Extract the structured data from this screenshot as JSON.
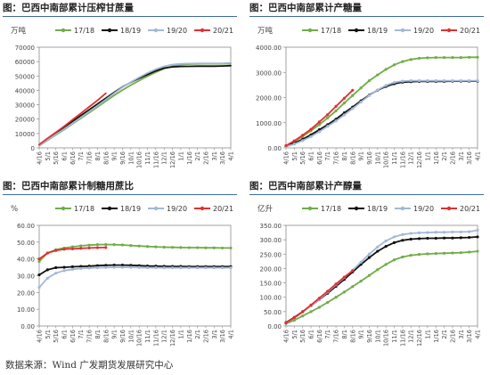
{
  "source": "数据来源：Wind  广发期货发展研究中心",
  "chart_data": [
    {
      "type": "line",
      "title": "图：巴西中南部累计压榨甘蔗量",
      "unit": "万吨",
      "ylim": [
        0,
        70000
      ],
      "yticks": [
        0,
        10000,
        20000,
        30000,
        40000,
        50000,
        60000,
        70000
      ],
      "ytick_labels": [
        "0",
        "10000",
        "20000",
        "30000",
        "40000",
        "50000",
        "60000",
        "70000"
      ],
      "x_labels": [
        "4/16",
        "5/1",
        "5/16",
        "6/1",
        "6/16",
        "7/1",
        "7/16",
        "8/1",
        "8/16",
        "9/1",
        "9/16",
        "10/1",
        "10/16",
        "11/1",
        "11/16",
        "12/1",
        "12/16",
        "1/1",
        "1/16",
        "2/1",
        "2/16",
        "3/1",
        "3/16",
        "4/1"
      ],
      "legend_placement": "top",
      "series": [
        {
          "name": "17/18",
          "color": "#70ad47",
          "values": [
            1500,
            5200,
            9000,
            12700,
            16700,
            20500,
            24500,
            28500,
            32500,
            36500,
            40200,
            43600,
            46800,
            49800,
            52600,
            55000,
            56800,
            57800,
            58200,
            58400,
            58500,
            58500,
            58500,
            58600
          ]
        },
        {
          "name": "18/19",
          "color": "#111111",
          "values": [
            2000,
            6200,
            10300,
            14300,
            18400,
            22400,
            26500,
            30500,
            34500,
            38500,
            42400,
            45500,
            48300,
            51000,
            53500,
            55500,
            56300,
            56600,
            56700,
            56800,
            56800,
            56800,
            56900,
            57200
          ]
        },
        {
          "name": "19/20",
          "color": "#a3b8d6",
          "values": [
            1600,
            5400,
            9300,
            13100,
            17100,
            21100,
            25200,
            29300,
            33600,
            38000,
            42100,
            45700,
            49000,
            52100,
            54700,
            56700,
            57900,
            58400,
            58600,
            58700,
            58700,
            58700,
            58800,
            59100
          ]
        },
        {
          "name": "20/21",
          "color": "#e03030",
          "values": [
            2300,
            6600,
            10800,
            15000,
            19600,
            24000,
            28500,
            33000,
            38000
          ]
        }
      ]
    },
    {
      "type": "line",
      "title": "图：巴西中南部累计产糖量",
      "unit": "万吨",
      "ylim": [
        0,
        4000
      ],
      "yticks": [
        0,
        1000,
        2000,
        3000,
        4000
      ],
      "ytick_labels": [
        "0.00",
        "1000.00",
        "2000.00",
        "3000.00",
        "4000.00"
      ],
      "x_labels": [
        "4/16",
        "5/1",
        "5/16",
        "6/1",
        "6/16",
        "7/1",
        "7/16",
        "8/1",
        "8/16",
        "9/1",
        "9/16",
        "10/1",
        "10/16",
        "11/1",
        "11/16",
        "12/1",
        "12/16",
        "1/1",
        "1/16",
        "2/1",
        "2/16",
        "3/1",
        "3/16",
        "4/1"
      ],
      "legend_placement": "top",
      "series": [
        {
          "name": "17/18",
          "color": "#70ad47",
          "values": [
            90,
            260,
            450,
            680,
            920,
            1190,
            1470,
            1780,
            2080,
            2380,
            2670,
            2900,
            3120,
            3300,
            3430,
            3510,
            3560,
            3580,
            3590,
            3590,
            3590,
            3590,
            3600,
            3600
          ]
        },
        {
          "name": "18/19",
          "color": "#111111",
          "values": [
            60,
            190,
            340,
            520,
            720,
            920,
            1140,
            1390,
            1620,
            1870,
            2100,
            2290,
            2440,
            2550,
            2610,
            2630,
            2640,
            2640,
            2640,
            2640,
            2650,
            2650,
            2650,
            2650
          ]
        },
        {
          "name": "19/20",
          "color": "#a3b8d6",
          "values": [
            50,
            150,
            290,
            450,
            640,
            860,
            1070,
            1310,
            1560,
            1820,
            2080,
            2300,
            2480,
            2600,
            2650,
            2670,
            2670,
            2670,
            2670,
            2670,
            2670,
            2670,
            2670,
            2670
          ]
        },
        {
          "name": "20/21",
          "color": "#e03030",
          "values": [
            90,
            280,
            500,
            740,
            1030,
            1320,
            1650,
            1970,
            2290
          ]
        }
      ]
    },
    {
      "type": "line",
      "title": "图：巴西中南部累计制糖用蔗比",
      "unit": "%",
      "ylim": [
        0,
        60
      ],
      "yticks": [
        0,
        10,
        20,
        30,
        40,
        50,
        60
      ],
      "ytick_labels": [
        "0.00",
        "10.00",
        "20.00",
        "30.00",
        "40.00",
        "50.00",
        "60.00"
      ],
      "x_labels": [
        "4/16",
        "5/1",
        "5/16",
        "6/1",
        "6/16",
        "7/1",
        "7/16",
        "8/1",
        "8/16",
        "9/1",
        "9/16",
        "10/1",
        "10/16",
        "11/1",
        "11/16",
        "12/1",
        "12/16",
        "1/1",
        "1/16",
        "2/1",
        "2/16",
        "3/1",
        "3/16",
        "4/1"
      ],
      "legend_placement": "top",
      "series": [
        {
          "name": "17/18",
          "color": "#70ad47",
          "values": [
            38.5,
            43.5,
            45.5,
            46.5,
            47.2,
            47.8,
            48.2,
            48.5,
            48.6,
            48.5,
            48.3,
            48.0,
            47.7,
            47.4,
            47.2,
            47.0,
            46.9,
            46.8,
            46.7,
            46.7,
            46.6,
            46.6,
            46.5,
            46.5
          ]
        },
        {
          "name": "18/19",
          "color": "#111111",
          "values": [
            30.5,
            33.5,
            34.8,
            35.0,
            35.3,
            35.5,
            35.7,
            36.0,
            36.2,
            36.3,
            36.3,
            36.2,
            36.0,
            35.8,
            35.7,
            35.6,
            35.5,
            35.5,
            35.4,
            35.4,
            35.4,
            35.4,
            35.4,
            35.4
          ]
        },
        {
          "name": "19/20",
          "color": "#a3b8d6",
          "values": [
            23.0,
            28.5,
            31.5,
            33.0,
            33.8,
            34.3,
            34.6,
            34.8,
            34.9,
            35.0,
            35.0,
            35.0,
            34.9,
            34.8,
            34.8,
            34.7,
            34.7,
            34.7,
            34.7,
            34.7,
            34.7,
            34.7,
            34.7,
            34.7
          ]
        },
        {
          "name": "20/21",
          "color": "#e03030",
          "values": [
            40.0,
            43.5,
            45.0,
            45.8,
            46.0,
            46.3,
            46.5,
            46.7,
            46.8
          ]
        }
      ]
    },
    {
      "type": "line",
      "title": "图：巴西中南部累计产醇量",
      "unit": "亿升",
      "ylim": [
        0,
        350
      ],
      "yticks": [
        0,
        50,
        100,
        150,
        200,
        250,
        300,
        350
      ],
      "ytick_labels": [
        "0.00",
        "50.00",
        "100.00",
        "150.00",
        "200.00",
        "250.00",
        "300.00",
        "350.00"
      ],
      "x_labels": [
        "4/16",
        "5/1",
        "5/16",
        "6/1",
        "6/16",
        "7/1",
        "7/16",
        "8/1",
        "8/16",
        "9/1",
        "9/16",
        "10/1",
        "10/16",
        "11/1",
        "11/16",
        "12/1",
        "12/16",
        "1/1",
        "1/16",
        "2/1",
        "2/16",
        "3/1",
        "3/16",
        "4/1"
      ],
      "legend_placement": "top",
      "series": [
        {
          "name": "17/18",
          "color": "#70ad47",
          "values": [
            8,
            20,
            35,
            50,
            65,
            82,
            100,
            118,
            137,
            156,
            176,
            196,
            214,
            230,
            240,
            246,
            249,
            251,
            252,
            253,
            254,
            255,
            257,
            260
          ]
        },
        {
          "name": "18/19",
          "color": "#111111",
          "values": [
            12,
            30,
            50,
            70,
            92,
            114,
            138,
            162,
            188,
            214,
            238,
            260,
            277,
            290,
            298,
            302,
            304,
            305,
            305,
            306,
            306,
            307,
            308,
            310
          ]
        },
        {
          "name": "19/20",
          "color": "#a3b8d6",
          "values": [
            10,
            28,
            48,
            70,
            93,
            118,
            143,
            168,
            194,
            222,
            250,
            275,
            296,
            310,
            318,
            322,
            324,
            325,
            326,
            326,
            327,
            327,
            328,
            333
          ]
        },
        {
          "name": "20/21",
          "color": "#e03030",
          "values": [
            11,
            29,
            50,
            73,
            97,
            121,
            146,
            170,
            192
          ]
        }
      ]
    }
  ]
}
